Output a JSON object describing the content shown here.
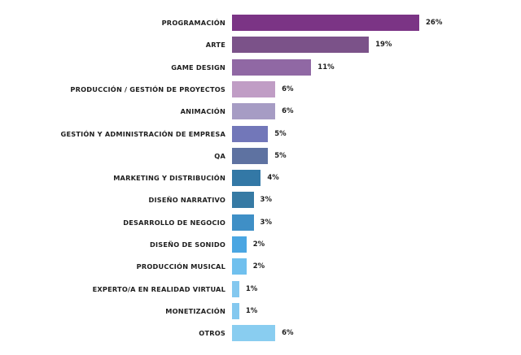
{
  "chart_data": {
    "type": "bar",
    "orientation": "horizontal",
    "title": "",
    "xlabel": "",
    "ylabel": "",
    "grid": false,
    "legend": null,
    "value_suffix": "%",
    "xlim": [
      0,
      26
    ],
    "categories": [
      "PROGRAMACIÓN",
      "ARTE",
      "GAME DESIGN",
      "PRODUCCIÓN / GESTIÓN DE PROYECTOS",
      "ANIMACIÓN",
      "GESTIÓN Y ADMINISTRACIÓN DE EMPRESA",
      "QA",
      "MARKETING Y DISTRIBUCIÓN",
      "DISEÑO NARRATIVO",
      "DESARROLLO DE NEGOCIO",
      "DISEÑO DE SONIDO",
      "PRODUCCIÓN MUSICAL",
      "EXPERTO/A EN REALIDAD VIRTUAL",
      "MONETIZACIÓN",
      "OTROS"
    ],
    "values": [
      26,
      19,
      11,
      6,
      6,
      5,
      5,
      4,
      3,
      3,
      2,
      2,
      1,
      1,
      6
    ],
    "value_labels": [
      "26%",
      "19%",
      "11%",
      "6%",
      "6%",
      "5%",
      "5%",
      "4%",
      "3%",
      "3%",
      "2%",
      "2%",
      "1%",
      "1%",
      "6%"
    ],
    "colors": [
      "#7b3485",
      "#7b5289",
      "#9068a4",
      "#c09dc5",
      "#a69cc4",
      "#7277b9",
      "#5e72a1",
      "#3378a6",
      "#367aa4",
      "#3f8fc6",
      "#4aa6e2",
      "#70c0ee",
      "#84c8ef",
      "#84c8ef",
      "#89cdf0"
    ]
  },
  "bars": [
    {
      "label": "PROGRAMACIÓN",
      "value": "26%",
      "color": "#7b3485"
    },
    {
      "label": "ARTE",
      "value": "19%",
      "color": "#7b5289"
    },
    {
      "label": "GAME DESIGN",
      "value": "11%",
      "color": "#9068a4"
    },
    {
      "label": "PRODUCCIÓN / GESTIÓN DE PROYECTOS",
      "value": "6%",
      "color": "#c09dc5"
    },
    {
      "label": "ANIMACIÓN",
      "value": "6%",
      "color": "#a69cc4"
    },
    {
      "label": "GESTIÓN Y ADMINISTRACIÓN DE EMPRESA",
      "value": "5%",
      "color": "#7277b9"
    },
    {
      "label": "QA",
      "value": "5%",
      "color": "#5e72a1"
    },
    {
      "label": "MARKETING Y DISTRIBUCIÓN",
      "value": "4%",
      "color": "#3378a6"
    },
    {
      "label": "DISEÑO NARRATIVO",
      "value": "3%",
      "color": "#367aa4"
    },
    {
      "label": "DESARROLLO DE NEGOCIO",
      "value": "3%",
      "color": "#3f8fc6"
    },
    {
      "label": "DISEÑO DE SONIDO",
      "value": "2%",
      "color": "#4aa6e2"
    },
    {
      "label": "PRODUCCIÓN MUSICAL",
      "value": "2%",
      "color": "#70c0ee"
    },
    {
      "label": "EXPERTO/A EN REALIDAD VIRTUAL",
      "value": "1%",
      "color": "#84c8ef"
    },
    {
      "label": "MONETIZACIÓN",
      "value": "1%",
      "color": "#84c8ef"
    },
    {
      "label": "OTROS",
      "value": "6%",
      "color": "#89cdf0"
    }
  ]
}
